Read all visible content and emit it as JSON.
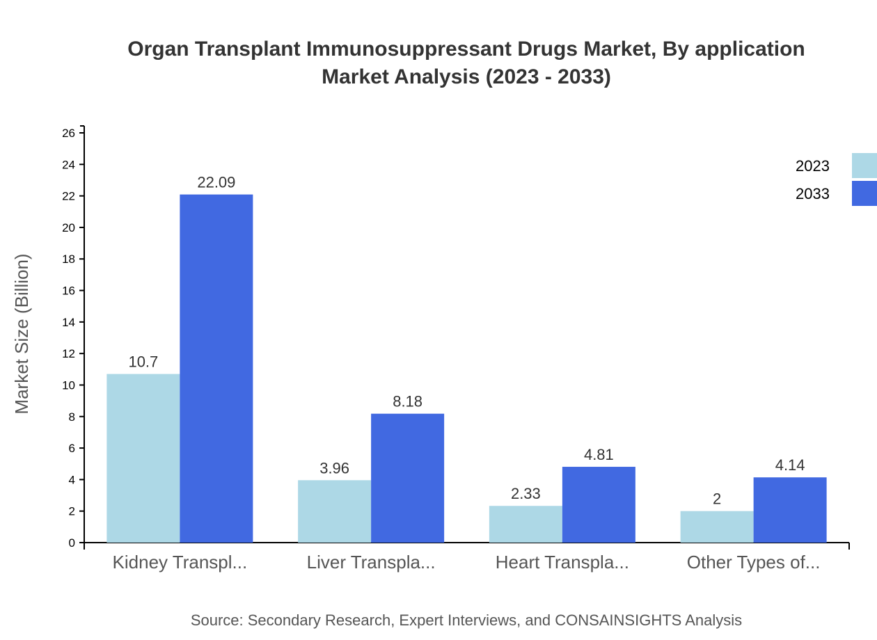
{
  "chart_data": {
    "type": "bar",
    "title_lines": [
      "Organ Transplant Immunosuppressant Drugs Market, By application",
      "Market Analysis (2023 - 2033)"
    ],
    "xlabel": "",
    "ylabel": "Market Size (Billion)",
    "ylim": [
      0,
      26
    ],
    "yticks": [
      0,
      2,
      4,
      6,
      8,
      10,
      12,
      14,
      16,
      18,
      20,
      22,
      24,
      26
    ],
    "categories": [
      "Kidney Transpl...",
      "Liver Transpla...",
      "Heart Transpla...",
      "Other Types of..."
    ],
    "series": [
      {
        "name": "2023",
        "color": "#add8e6",
        "values": [
          10.7,
          3.96,
          2.33,
          2
        ]
      },
      {
        "name": "2033",
        "color": "#4169e1",
        "values": [
          22.09,
          8.18,
          4.81,
          4.14
        ]
      }
    ],
    "grid": false,
    "legend_position": "top-right",
    "source": "Source: Secondary Research, Expert Interviews, and CONSAINSIGHTS Analysis"
  }
}
